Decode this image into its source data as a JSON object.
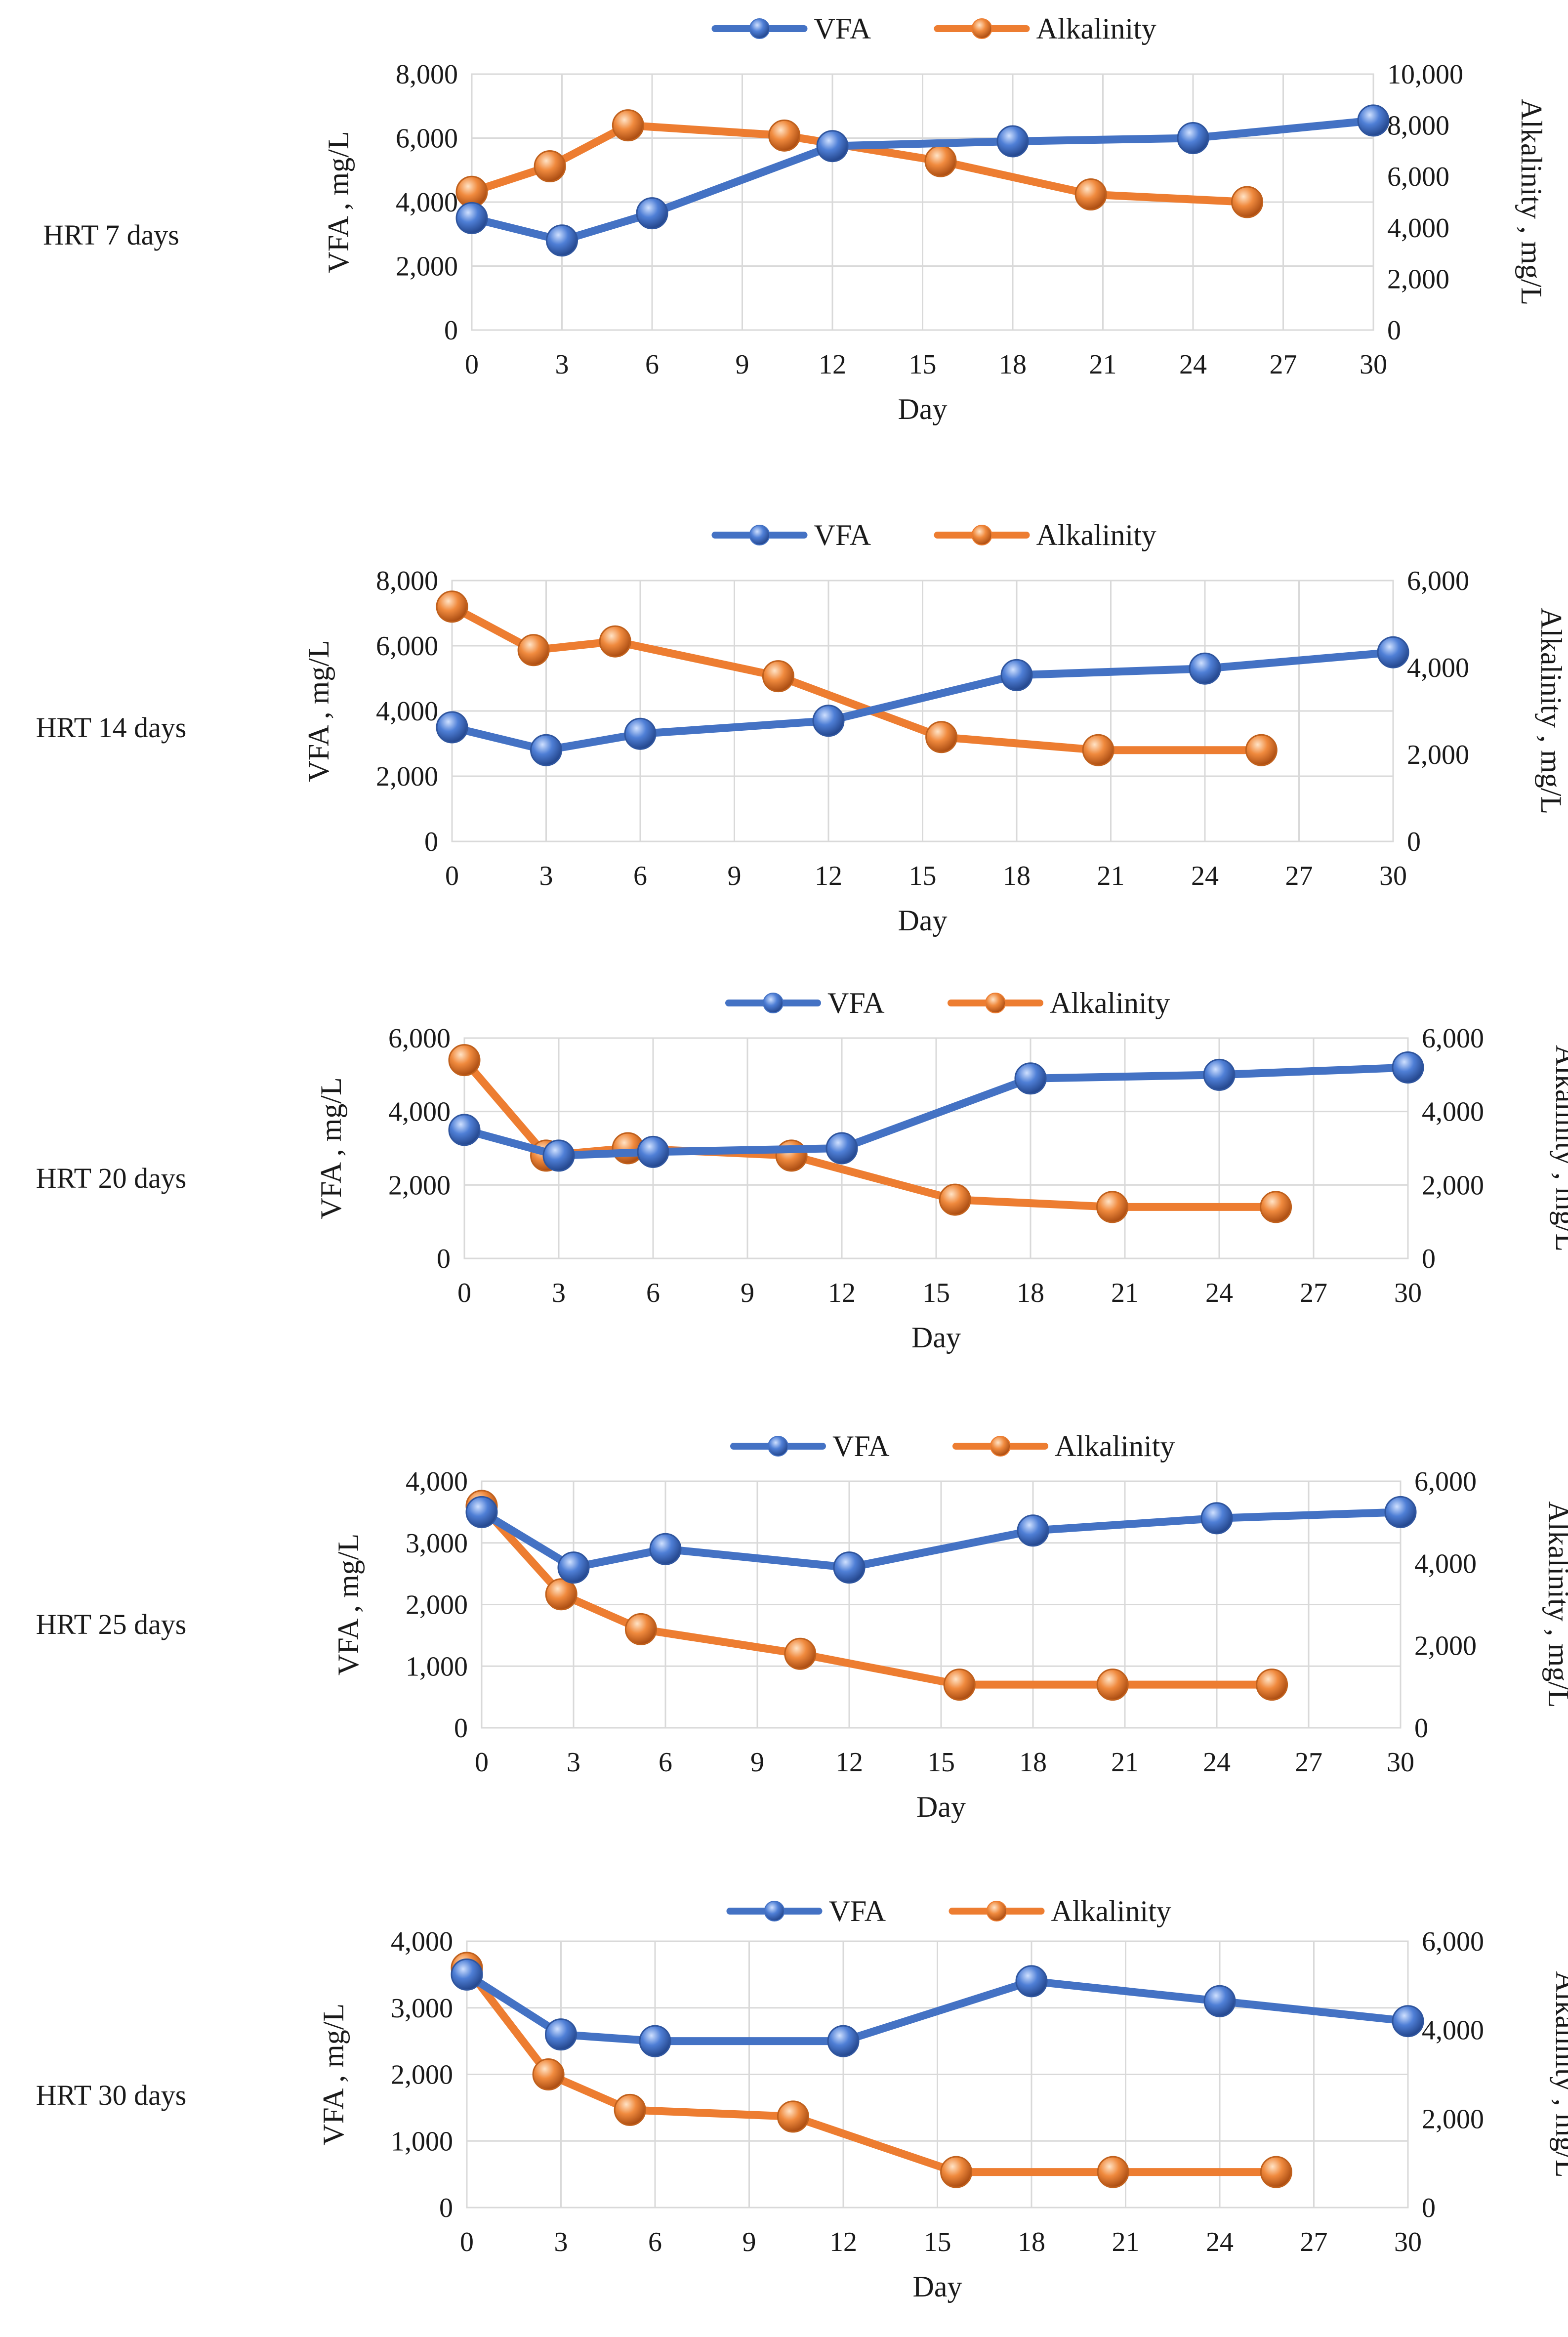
{
  "chart_data": [
    {
      "type": "line",
      "panel_label": "HRT 7 days",
      "xlabel": "Day",
      "ylabel": "VFA , mg/L",
      "y2label": "Alkalinity , mg/L",
      "xlim": [
        0,
        30
      ],
      "xticks": [
        "0",
        "3",
        "6",
        "9",
        "12",
        "15",
        "18",
        "21",
        "24",
        "27",
        "30"
      ],
      "ylim": [
        0,
        8000
      ],
      "yticks": [
        "0",
        "2,000",
        "4,000",
        "6,000",
        "8,000"
      ],
      "y2lim": [
        0,
        10000
      ],
      "y2ticks": [
        "0",
        "2,000",
        "4,000",
        "6,000",
        "8,000",
        "10,000"
      ],
      "legend": [
        "VFA",
        "Alkalinity"
      ],
      "series": [
        {
          "name": "VFA",
          "axis": "left",
          "color": "#4472C4",
          "x": [
            0,
            3,
            6,
            12,
            18,
            24,
            30
          ],
          "values": [
            3500,
            2800,
            3650,
            5750,
            5900,
            6000,
            6550
          ]
        },
        {
          "name": "Alkalinity",
          "axis": "right",
          "color": "#ED7D31",
          "x": [
            0,
            2.6,
            5.2,
            10.4,
            15.6,
            20.6,
            25.8
          ],
          "values": [
            5400,
            6400,
            8000,
            7600,
            6600,
            5300,
            5000
          ]
        }
      ]
    },
    {
      "type": "line",
      "panel_label": "HRT 14 days",
      "xlabel": "Day",
      "ylabel": "VFA , mg/L",
      "y2label": "Alkalinity , mg/L",
      "xlim": [
        0,
        30
      ],
      "xticks": [
        "0",
        "3",
        "6",
        "9",
        "12",
        "15",
        "18",
        "21",
        "24",
        "27",
        "30"
      ],
      "ylim": [
        0,
        8000
      ],
      "yticks": [
        "0",
        "2,000",
        "4,000",
        "6,000",
        "8,000"
      ],
      "y2lim": [
        0,
        6000
      ],
      "y2ticks": [
        "0",
        "2,000",
        "4,000",
        "6,000"
      ],
      "legend": [
        "VFA",
        "Alkalinity"
      ],
      "series": [
        {
          "name": "VFA",
          "axis": "left",
          "color": "#4472C4",
          "x": [
            0,
            3,
            6,
            12,
            18,
            24,
            30
          ],
          "values": [
            3500,
            2800,
            3300,
            3700,
            5100,
            5300,
            5800
          ]
        },
        {
          "name": "Alkalinity",
          "axis": "right",
          "color": "#ED7D31",
          "x": [
            0,
            2.6,
            5.2,
            10.4,
            15.6,
            20.6,
            25.8
          ],
          "values": [
            5400,
            4400,
            4600,
            3800,
            2400,
            2100,
            2100
          ]
        }
      ]
    },
    {
      "type": "line",
      "panel_label": "HRT 20 days",
      "xlabel": "Day",
      "ylabel": "VFA , mg/L",
      "y2label": "Alkalinity , mg/L",
      "xlim": [
        0,
        30
      ],
      "xticks": [
        "0",
        "3",
        "6",
        "9",
        "12",
        "15",
        "18",
        "21",
        "24",
        "27",
        "30"
      ],
      "ylim": [
        0,
        6000
      ],
      "yticks": [
        "0",
        "2,000",
        "4,000",
        "6,000"
      ],
      "y2lim": [
        0,
        6000
      ],
      "y2ticks": [
        "0",
        "2,000",
        "4,000",
        "6,000"
      ],
      "legend": [
        "VFA",
        "Alkalinity"
      ],
      "series": [
        {
          "name": "VFA",
          "axis": "left",
          "color": "#4472C4",
          "x": [
            0,
            3,
            6,
            12,
            18,
            24,
            30
          ],
          "values": [
            3500,
            2800,
            2900,
            3000,
            4900,
            5000,
            5200
          ]
        },
        {
          "name": "Alkalinity",
          "axis": "right",
          "color": "#ED7D31",
          "x": [
            0,
            2.6,
            5.2,
            10.4,
            15.6,
            20.6,
            25.8
          ],
          "values": [
            5400,
            2800,
            3000,
            2800,
            1600,
            1400,
            1400
          ]
        }
      ]
    },
    {
      "type": "line",
      "panel_label": "HRT 25 days",
      "xlabel": "Day",
      "ylabel": "VFA , mg/L",
      "y2label": "Alkalinity , mg/L",
      "xlim": [
        0,
        30
      ],
      "xticks": [
        "0",
        "3",
        "6",
        "9",
        "12",
        "15",
        "18",
        "21",
        "24",
        "27",
        "30"
      ],
      "ylim": [
        0,
        4000
      ],
      "yticks": [
        "0",
        "1,000",
        "2,000",
        "3,000",
        "4,000"
      ],
      "y2lim": [
        0,
        6000
      ],
      "y2ticks": [
        "0",
        "2,000",
        "4,000",
        "6,000"
      ],
      "legend": [
        "VFA",
        "Alkalinity"
      ],
      "series": [
        {
          "name": "VFA",
          "axis": "left",
          "color": "#4472C4",
          "x": [
            0,
            3,
            6,
            12,
            18,
            24,
            30
          ],
          "values": [
            3500,
            2600,
            2900,
            2600,
            3200,
            3400,
            3500
          ]
        },
        {
          "name": "Alkalinity",
          "axis": "right",
          "color": "#ED7D31",
          "x": [
            0,
            2.6,
            5.2,
            10.4,
            15.6,
            20.6,
            25.8
          ],
          "values": [
            5400,
            3250,
            2400,
            1800,
            1050,
            1050,
            1050
          ]
        }
      ]
    },
    {
      "type": "line",
      "panel_label": "HRT 30 days",
      "xlabel": "Day",
      "ylabel": "VFA , mg/L",
      "y2label": "Alkalinity , mg/L",
      "xlim": [
        0,
        30
      ],
      "xticks": [
        "0",
        "3",
        "6",
        "9",
        "12",
        "15",
        "18",
        "21",
        "24",
        "27",
        "30"
      ],
      "ylim": [
        0,
        4000
      ],
      "yticks": [
        "0",
        "1,000",
        "2,000",
        "3,000",
        "4,000"
      ],
      "y2lim": [
        0,
        6000
      ],
      "y2ticks": [
        "0",
        "2,000",
        "4,000",
        "6,000"
      ],
      "legend": [
        "VFA",
        "Alkalinity"
      ],
      "series": [
        {
          "name": "VFA",
          "axis": "left",
          "color": "#4472C4",
          "x": [
            0,
            3,
            6,
            12,
            18,
            24,
            30
          ],
          "values": [
            3500,
            2600,
            2500,
            2500,
            3400,
            3100,
            2800
          ]
        },
        {
          "name": "Alkalinity",
          "axis": "right",
          "color": "#ED7D31",
          "x": [
            0,
            2.6,
            5.2,
            10.4,
            15.6,
            20.6,
            25.8
          ],
          "values": [
            5400,
            3000,
            2200,
            2050,
            800,
            800,
            800
          ]
        }
      ]
    }
  ]
}
